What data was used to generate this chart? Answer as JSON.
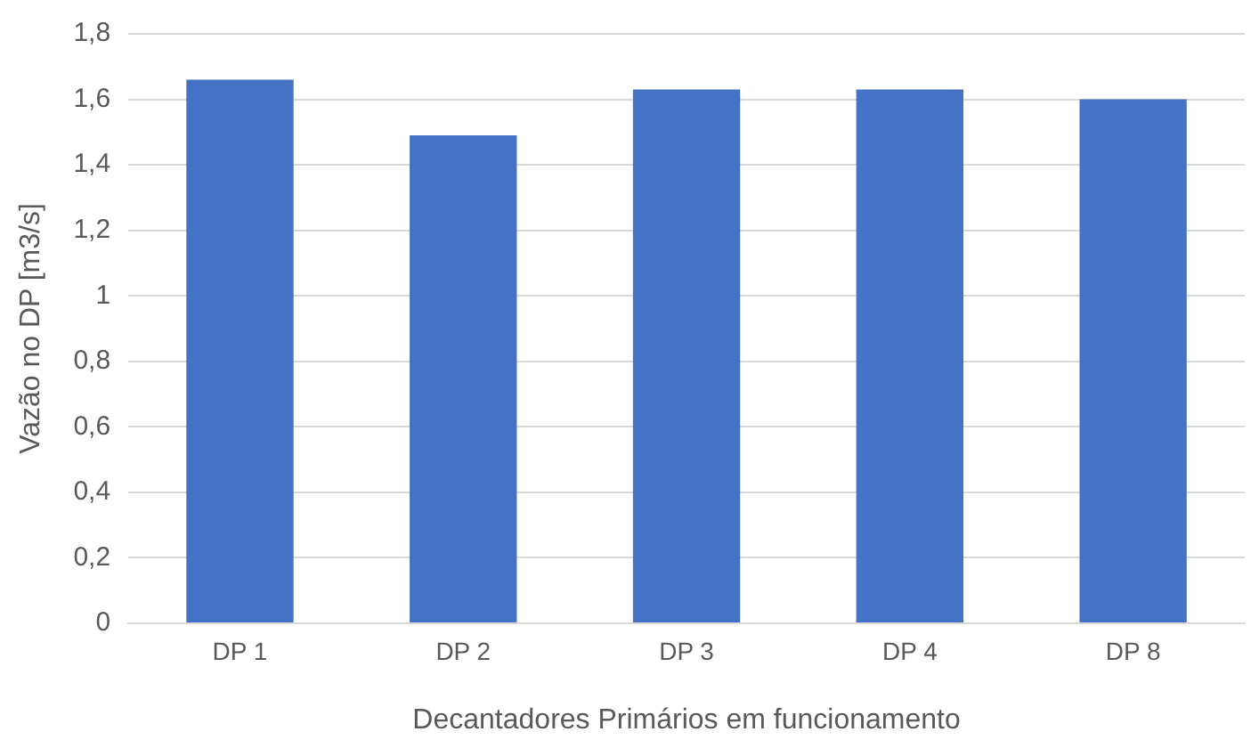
{
  "chart_data": {
    "type": "bar",
    "xlabel": "Decantadores Primários em funcionamento",
    "ylabel": "Vazão no DP [m3/s]",
    "categories": [
      "DP 1",
      "DP 2",
      "DP 3",
      "DP 4",
      "DP 8"
    ],
    "values": [
      1.66,
      1.49,
      1.63,
      1.63,
      1.6
    ],
    "color": "#4472c4",
    "ylim": [
      0,
      1.8
    ],
    "yticks": [
      0,
      {
        "value": 0.2,
        "label": "0,2"
      },
      {
        "value": 0.4,
        "label": "0,4"
      },
      {
        "value": 0.6,
        "label": "0,6"
      },
      {
        "value": 0.8,
        "label": "0,8"
      },
      1,
      {
        "value": 1.2,
        "label": "1,2"
      },
      {
        "value": 1.4,
        "label": "1,4"
      },
      {
        "value": 1.6,
        "label": "1,6"
      },
      {
        "value": 1.8,
        "label": "1,8"
      }
    ],
    "grid": "y",
    "legend": false
  }
}
